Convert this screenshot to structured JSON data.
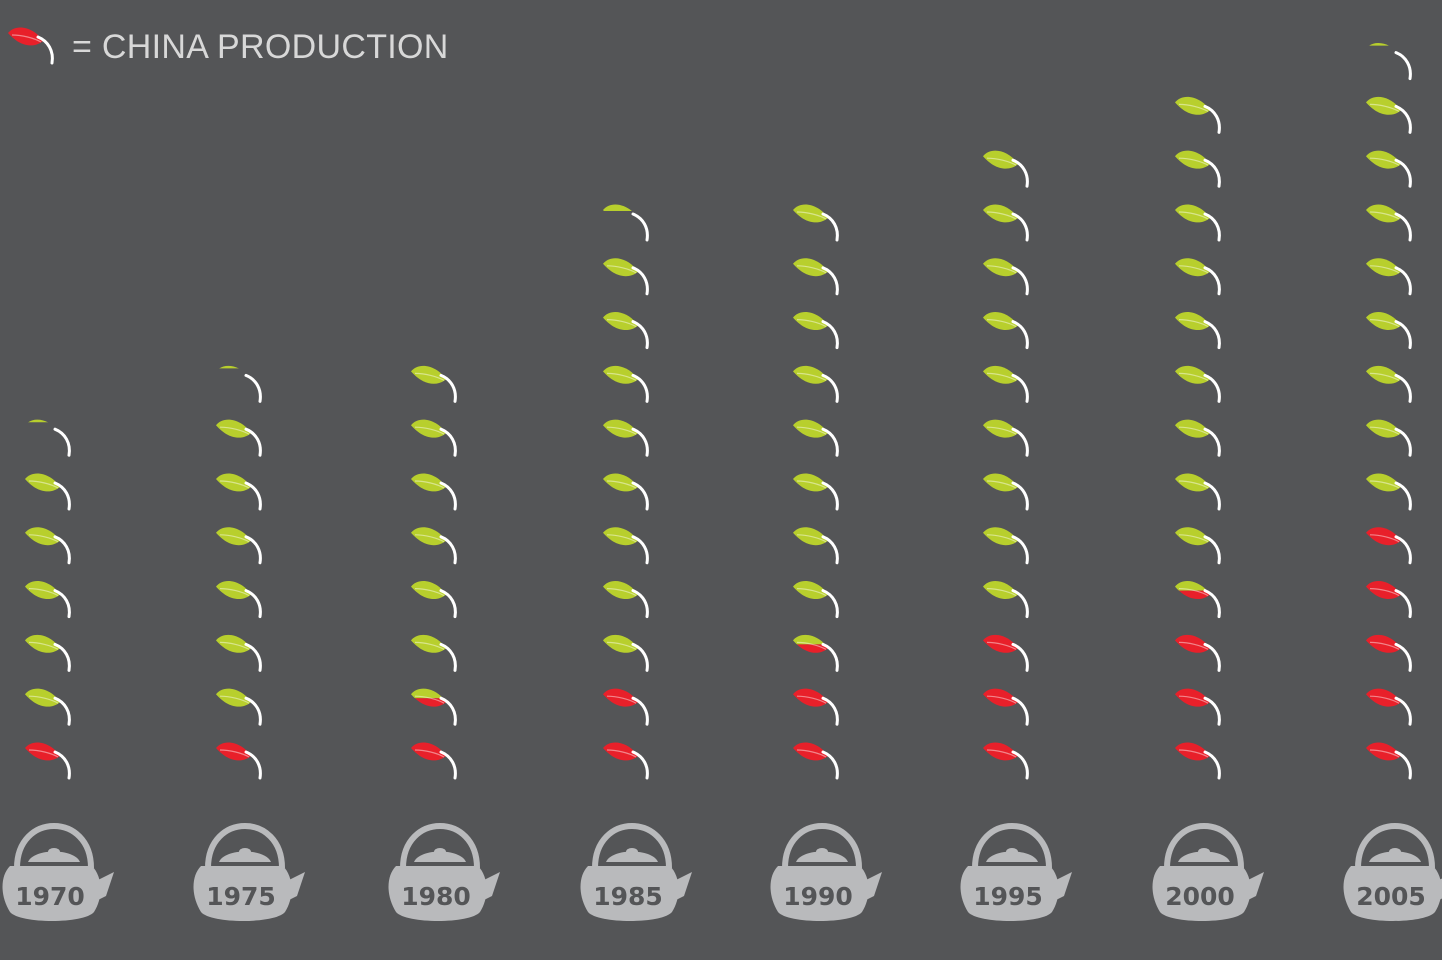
{
  "legend": {
    "label": "= CHINA PRODUCTION",
    "icon": "leaf-icon"
  },
  "colors": {
    "background": "#545557",
    "china": "#e8202a",
    "other": "#b8cf2d",
    "stem": "#ffffff",
    "teapot": "#b9babc"
  },
  "chart_data": {
    "type": "bar",
    "unit_icon": "tea-leaf",
    "categories": [
      "1970",
      "1975",
      "1980",
      "1985",
      "1990",
      "1995",
      "2000",
      "2005"
    ],
    "series": [
      {
        "name": "China production",
        "values": [
          1,
          1,
          1.6,
          2,
          2.6,
          3,
          3.6,
          5
        ]
      },
      {
        "name": "",
        "values": [
          5.2,
          6.2,
          6.2,
          8.3,
          8.2,
          9,
          9,
          8.2
        ]
      }
    ],
    "totals": [
      6.2,
      7.2,
      7.8,
      10.3,
      10.8,
      12,
      12.6,
      13.2
    ]
  }
}
